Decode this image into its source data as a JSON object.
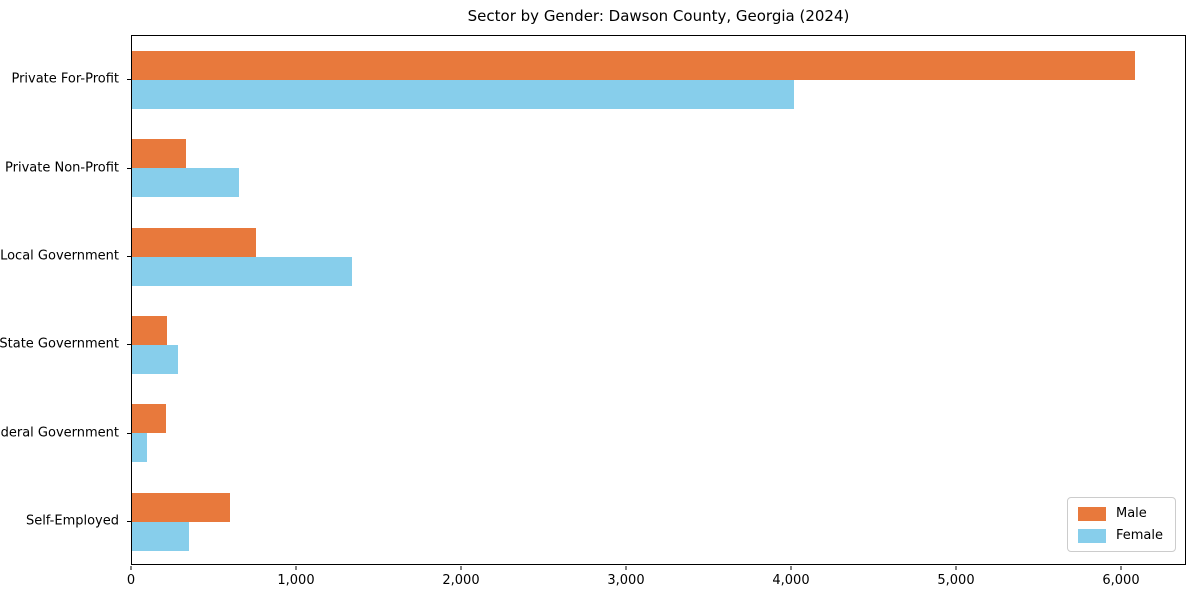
{
  "title": "Sector by Gender: Dawson County, Georgia (2024)",
  "colors": {
    "male": "#e8793c",
    "female": "#87ceeb",
    "spine": "#000000",
    "legend_border": "#cccccc",
    "background": "#ffffff"
  },
  "legend": {
    "position": "lower right",
    "male_label": "Male",
    "female_label": "Female"
  },
  "chart_data": {
    "type": "bar",
    "orientation": "horizontal",
    "title": "Sector by Gender: Dawson County, Georgia (2024)",
    "xlabel": "",
    "ylabel": "",
    "categories": [
      "Private For-Profit",
      "Private Non-Profit",
      "Local Government",
      "State Government",
      "Federal Government",
      "Self-Employed"
    ],
    "series": [
      {
        "name": "Male",
        "color": "#e8793c",
        "values": [
          6090,
          330,
          750,
          210,
          205,
          595
        ]
      },
      {
        "name": "Female",
        "color": "#87ceeb",
        "values": [
          4020,
          650,
          1335,
          280,
          90,
          345
        ]
      }
    ],
    "xlim": [
      0,
      6394
    ],
    "x_ticks": [
      0,
      1000,
      2000,
      3000,
      4000,
      5000,
      6000
    ],
    "x_tick_labels": [
      "0",
      "1,000",
      "2,000",
      "3,000",
      "4,000",
      "5,000",
      "6,000"
    ],
    "grid": false,
    "legend_position": "lower right"
  }
}
